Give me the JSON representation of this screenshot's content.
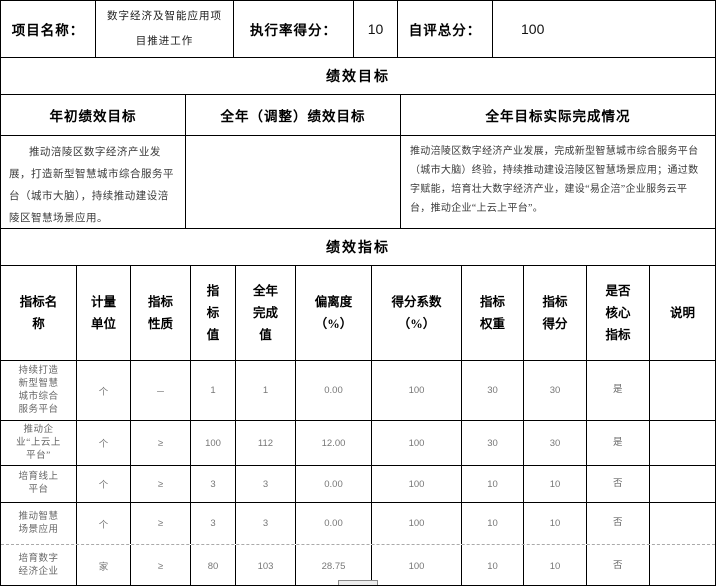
{
  "project": {
    "name_label": "项目名称：",
    "name_value": "数字经济及智能应用项目推进工作",
    "exec_label": "执行率得分：",
    "exec_value": "10",
    "self_label": "自评总分：",
    "self_value": "100"
  },
  "goals": {
    "banner": "绩效目标",
    "headers": [
      "年初绩效目标",
      "全年（调整）绩效目标",
      "全年目标实际完成情况"
    ],
    "initial": "推动涪陵区数字经济产业发展，打造新型智慧城市综合服务平台（城市大脑），持续推动建设涪陵区智慧场景应用。",
    "adjusted": "",
    "actual": "推动涪陵区数字经济产业发展，完成新型智慧城市综合服务平台（城市大脑）终验，持续推动建设涪陵区智慧场景应用；通过数字赋能，培育壮大数字经济产业，建设“易企涪”企业服务云平台，推动企业“上云上平台”。"
  },
  "indicators": {
    "banner": "绩效指标",
    "columns": [
      "指标名称",
      "计量单位",
      "指标性质",
      "指标值",
      "全年完成值",
      "偏离度（%）",
      "得分系数（%）",
      "指标权重",
      "指标得分",
      "是否核心指标",
      "说明"
    ],
    "rows": [
      [
        "持续打造新型智慧城市综合服务平台",
        "个",
        "－",
        "1",
        "1",
        "0.00",
        "100",
        "30",
        "30",
        "是",
        ""
      ],
      [
        "推动企业“上云上平台”",
        "个",
        "≥",
        "100",
        "112",
        "12.00",
        "100",
        "30",
        "30",
        "是",
        ""
      ],
      [
        "培育线上平台",
        "个",
        "≥",
        "3",
        "3",
        "0.00",
        "100",
        "10",
        "10",
        "否",
        ""
      ],
      [
        "推动智慧场景应用",
        "个",
        "≥",
        "3",
        "3",
        "0.00",
        "100",
        "10",
        "10",
        "否",
        ""
      ],
      [
        "培育数字经济企业",
        "家",
        "≥",
        "80",
        "103",
        "28.75",
        "100",
        "10",
        "10",
        "否",
        ""
      ]
    ]
  }
}
